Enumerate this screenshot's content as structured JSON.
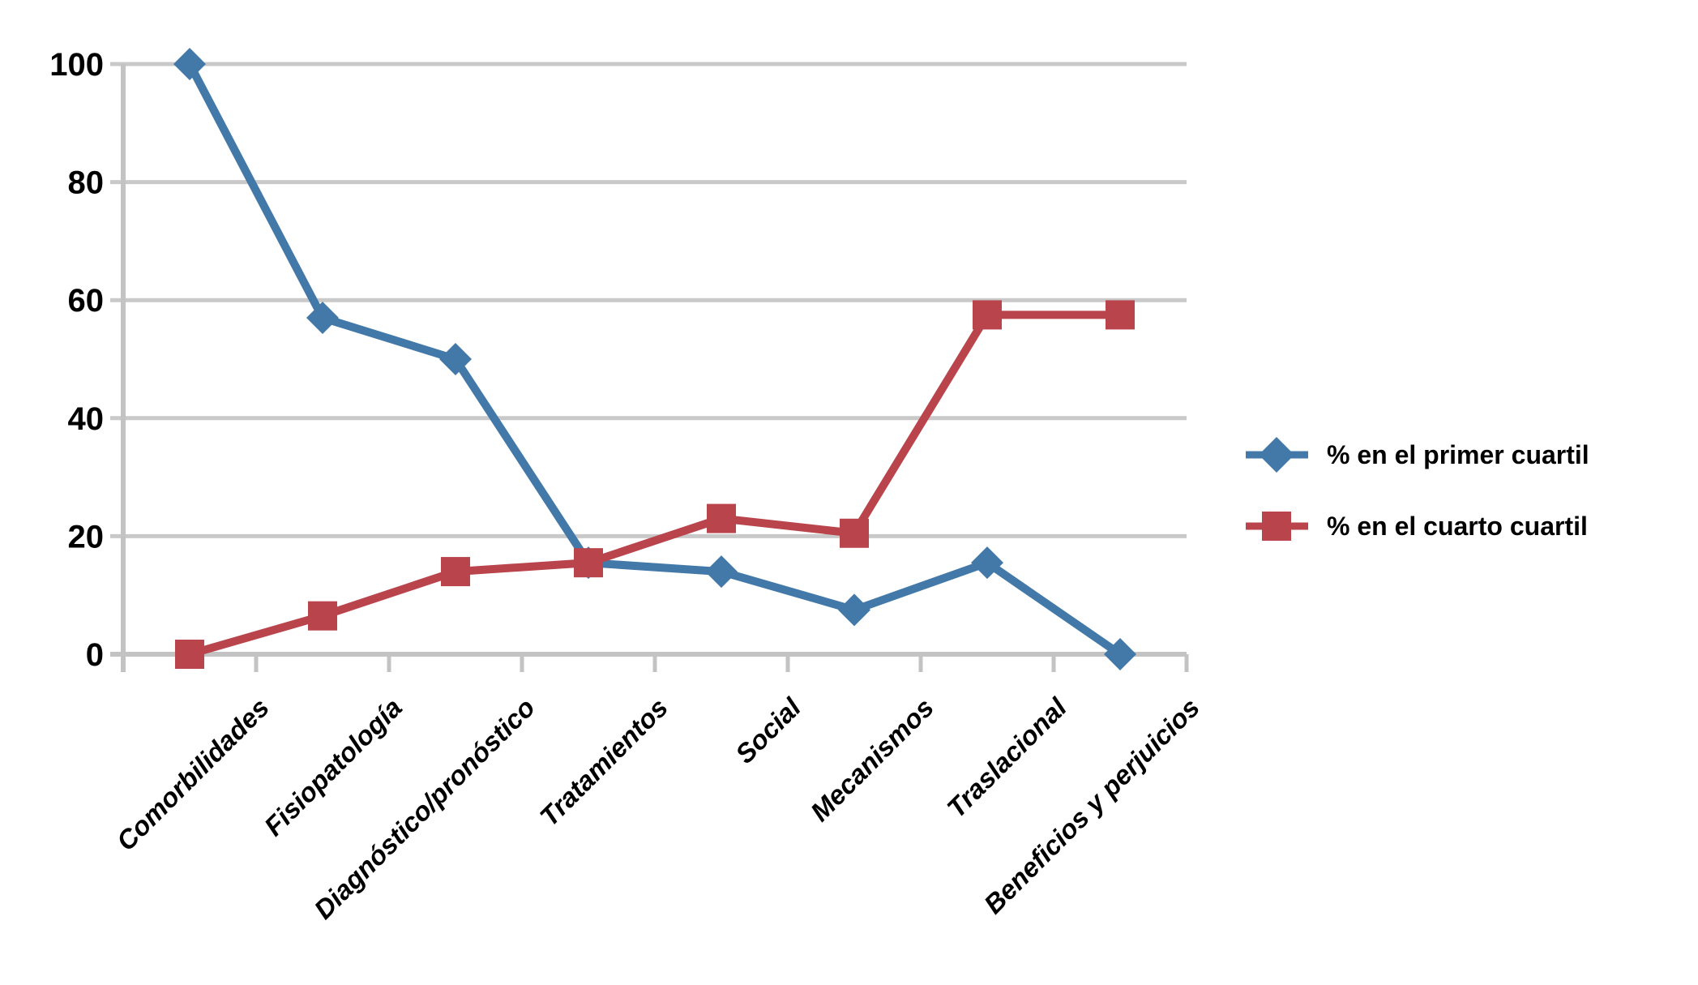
{
  "page": {
    "background": "#FFFFFF"
  },
  "chart_data": {
    "type": "line",
    "title": "",
    "xlabel": "",
    "ylabel": "",
    "categories": [
      "Comorbilidades",
      "Fisiopatología",
      "Diagnóstico/pronóstico",
      "Tratamientos",
      "Social",
      "Mecanismos",
      "Traslacional",
      "Beneficios y perjuicios"
    ],
    "series": [
      {
        "name": "% en el primer cuartil",
        "marker": "diamond",
        "color": "#4379A9",
        "values": [
          100,
          57,
          50,
          15.5,
          14,
          7.5,
          15.5,
          0
        ]
      },
      {
        "name": "% en el cuarto cuartil",
        "marker": "square",
        "color": "#B9444C",
        "values": [
          0,
          6.5,
          14,
          15.5,
          23,
          20.5,
          57.5,
          57.5
        ]
      }
    ],
    "ylim": [
      0,
      100
    ],
    "yticks": [
      0,
      20,
      40,
      60,
      80,
      100
    ],
    "grid": "horizontal-only",
    "legend_position": "right-middle",
    "colors": {
      "gridline": "#C9C9C9",
      "axis": "#C3C3C3",
      "text": "#000000",
      "background": "#FFFFFF"
    }
  }
}
